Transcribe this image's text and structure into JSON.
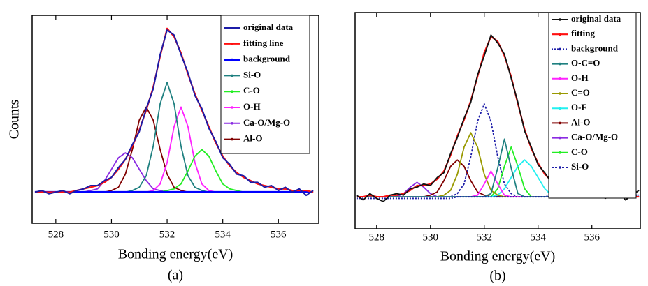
{
  "chart_data": [
    {
      "type": "line",
      "caption": "(a)",
      "x_label": "Bonding energy(eV)",
      "y_label": "Counts",
      "xlim": [
        527.15,
        537.45
      ],
      "ylim": [
        -19,
        108
      ],
      "xticks": [
        528,
        530,
        532,
        534,
        536
      ],
      "legend": "upper right",
      "x": [
        527.25,
        527.5,
        527.75,
        528,
        528.25,
        528.5,
        528.75,
        529,
        529.25,
        529.5,
        529.75,
        530,
        530.25,
        530.5,
        530.75,
        531,
        531.25,
        531.5,
        531.75,
        532,
        532.25,
        532.5,
        532.75,
        533,
        533.25,
        533.5,
        533.75,
        534,
        534.25,
        534.5,
        534.75,
        535,
        535.25,
        535.5,
        535.75,
        536,
        536.25,
        536.5,
        536.75,
        537,
        537.25
      ],
      "series": [
        {
          "name": "original data",
          "color": "#1c1ca8",
          "width": 2,
          "values": [
            0,
            1,
            -1,
            0,
            1,
            -1,
            1,
            2,
            4,
            4,
            7,
            9,
            15,
            20,
            29,
            37,
            51,
            63,
            84,
            99,
            96,
            84,
            73,
            59,
            51,
            39,
            31,
            21,
            17,
            11,
            10,
            6,
            6,
            3,
            4,
            1,
            3,
            0,
            2,
            -2,
            1
          ]
        },
        {
          "name": "fitting line",
          "color": "#ff1010",
          "width": 2.2,
          "values": [
            0,
            0,
            0,
            0,
            0,
            0,
            1,
            2,
            3,
            4,
            6,
            9,
            14,
            20,
            28,
            38,
            50,
            64,
            83,
            100,
            95,
            85,
            72,
            60,
            50,
            40,
            30,
            22,
            16,
            12,
            9,
            7,
            5,
            4,
            3,
            2,
            2,
            1,
            1,
            1,
            0
          ]
        },
        {
          "name": "background",
          "color": "#0000ff",
          "width": 3,
          "values": [
            0,
            0,
            0,
            0,
            0,
            0,
            0,
            0,
            0,
            0,
            0,
            0,
            0,
            0,
            0,
            0,
            0,
            0,
            0,
            0,
            0,
            0,
            0,
            0,
            0,
            0,
            0,
            0,
            0,
            0,
            0,
            0,
            0,
            0,
            0,
            0,
            0,
            0,
            0,
            0,
            0
          ]
        },
        {
          "name": "Si-O",
          "color": "#1f8080",
          "width": 1.8,
          "values": [
            0,
            0,
            0,
            0,
            0,
            0,
            0,
            0,
            0,
            0,
            0,
            0,
            0,
            0,
            1,
            3,
            10,
            28,
            54,
            67,
            54,
            28,
            10,
            3,
            1,
            0,
            0,
            0,
            0,
            0,
            0,
            0,
            0,
            0,
            0,
            0,
            0,
            0,
            0,
            0,
            0
          ]
        },
        {
          "name": "C-O",
          "color": "#22ee22",
          "width": 1.8,
          "values": [
            0,
            0,
            0,
            0,
            0,
            0,
            0,
            0,
            0,
            0,
            0,
            0,
            0,
            0,
            0,
            0,
            0,
            0,
            0,
            1,
            2,
            5,
            13,
            22,
            26,
            22,
            13,
            5,
            2,
            1,
            0,
            0,
            0,
            0,
            0,
            0,
            0,
            0,
            0,
            0,
            0
          ]
        },
        {
          "name": "O-H",
          "color": "#ff22ff",
          "width": 1.8,
          "values": [
            0,
            0,
            0,
            0,
            0,
            0,
            0,
            0,
            0,
            0,
            0,
            0,
            0,
            0,
            0,
            0,
            0,
            1,
            5,
            18,
            40,
            52,
            40,
            18,
            5,
            1,
            0,
            0,
            0,
            0,
            0,
            0,
            0,
            0,
            0,
            0,
            0,
            0,
            0,
            0,
            0
          ]
        },
        {
          "name": "Ca-O/Mg-O",
          "color": "#8a2be2",
          "width": 1.8,
          "values": [
            0,
            0,
            0,
            0,
            0,
            0,
            0,
            0,
            1,
            2,
            7,
            14,
            21,
            24,
            21,
            14,
            7,
            2,
            1,
            0,
            0,
            0,
            0,
            0,
            0,
            0,
            0,
            0,
            0,
            0,
            0,
            0,
            0,
            0,
            0,
            0,
            0,
            0,
            0,
            0,
            0
          ]
        },
        {
          "name": "Al-O",
          "color": "#800000",
          "width": 1.8,
          "values": [
            0,
            0,
            0,
            0,
            0,
            0,
            0,
            0,
            0,
            0,
            0,
            1,
            3,
            11,
            26,
            44,
            52,
            44,
            26,
            11,
            3,
            1,
            0,
            0,
            0,
            0,
            0,
            0,
            0,
            0,
            0,
            0,
            0,
            0,
            0,
            0,
            0,
            0,
            0,
            0,
            0
          ]
        }
      ]
    },
    {
      "type": "line",
      "caption": "(b)",
      "x_label": "Bonding energy(eV)",
      "xlim": [
        527.2,
        537.8
      ],
      "ylim": [
        -20,
        115
      ],
      "xticks": [
        528,
        530,
        532,
        534,
        536
      ],
      "legend": "upper right",
      "x": [
        527.25,
        527.5,
        527.75,
        528,
        528.25,
        528.5,
        528.75,
        529,
        529.25,
        529.5,
        529.75,
        530,
        530.25,
        530.5,
        530.75,
        531,
        531.25,
        531.5,
        531.75,
        532,
        532.25,
        532.5,
        532.75,
        533,
        533.25,
        533.5,
        533.75,
        534,
        534.25,
        534.5,
        534.75,
        535,
        535.25,
        535.5,
        535.75,
        536,
        536.25,
        536.5,
        536.75,
        537,
        537.25,
        537.5,
        537.75
      ],
      "series": [
        {
          "name": "original data",
          "color": "#111111",
          "width": 1.8,
          "values": [
            1,
            -2,
            2,
            -1,
            -3,
            1,
            2,
            1,
            5,
            6,
            8,
            7,
            12,
            15,
            27,
            37,
            49,
            59,
            76,
            88,
            101,
            96,
            89,
            74,
            59,
            41,
            31,
            20,
            15,
            9,
            8,
            5,
            5,
            2,
            3,
            0,
            2,
            -1,
            1,
            3,
            -2,
            1,
            4
          ]
        },
        {
          "name": "fitting",
          "color": "#ff1010",
          "width": 2.2,
          "values": [
            0,
            0,
            1,
            0,
            0,
            1,
            1,
            2,
            4,
            7,
            7,
            8,
            11,
            16,
            26,
            38,
            48,
            60,
            75,
            90,
            100,
            97,
            88,
            75,
            58,
            42,
            30,
            21,
            14,
            10,
            7,
            6,
            4,
            3,
            2,
            2,
            1,
            1,
            0,
            0,
            0,
            0,
            0
          ]
        },
        {
          "name": "background",
          "color": "#1c1ca8",
          "width": 2,
          "dash": "2 2",
          "values": [
            -1,
            -1,
            -1,
            -1,
            -1,
            -1,
            -1,
            -1,
            -1,
            -1,
            -1,
            -1,
            -1,
            -1,
            -1,
            0,
            0,
            0,
            0,
            0,
            0,
            0,
            0,
            0,
            0,
            0,
            0,
            0,
            0,
            1,
            1,
            1,
            1,
            1,
            1,
            1,
            1,
            1,
            1,
            1,
            1,
            1,
            1
          ]
        },
        {
          "name": "O-C=O",
          "color": "#1f8080",
          "width": 1.8,
          "values": [
            0,
            0,
            0,
            0,
            0,
            0,
            0,
            0,
            0,
            0,
            0,
            0,
            0,
            0,
            0,
            0,
            0,
            0,
            0,
            0,
            2,
            18,
            36,
            18,
            2,
            0,
            0,
            0,
            0,
            0,
            0,
            0,
            0,
            0,
            0,
            0,
            0,
            0,
            0,
            0,
            0,
            0,
            0
          ]
        },
        {
          "name": "O-H",
          "color": "#ff22ff",
          "width": 1.8,
          "values": [
            0,
            0,
            0,
            0,
            0,
            0,
            0,
            0,
            0,
            0,
            0,
            0,
            0,
            0,
            0,
            0,
            0,
            0,
            1,
            8,
            16,
            8,
            1,
            0,
            0,
            0,
            0,
            0,
            0,
            0,
            0,
            0,
            0,
            0,
            0,
            0,
            0,
            0,
            0,
            0,
            0,
            0,
            0
          ]
        },
        {
          "name": "C=O",
          "color": "#999900",
          "width": 1.8,
          "values": [
            0,
            0,
            0,
            0,
            0,
            0,
            0,
            0,
            0,
            0,
            0,
            0,
            0,
            1,
            4,
            14,
            31,
            40,
            31,
            14,
            4,
            1,
            0,
            0,
            0,
            0,
            0,
            0,
            0,
            0,
            0,
            0,
            0,
            0,
            0,
            0,
            0,
            0,
            0,
            0,
            0,
            0,
            0
          ]
        },
        {
          "name": "O-F",
          "color": "#22f0f0",
          "width": 1.8,
          "values": [
            0,
            0,
            0,
            0,
            0,
            0,
            0,
            0,
            0,
            0,
            0,
            0,
            0,
            0,
            0,
            0,
            0,
            0,
            0,
            0,
            0,
            1,
            5,
            12,
            19,
            23,
            19,
            12,
            5,
            1,
            0,
            0,
            0,
            0,
            0,
            0,
            0,
            0,
            0,
            0,
            0,
            0,
            0
          ]
        },
        {
          "name": "Al-O",
          "color": "#800000",
          "width": 1.8,
          "values": [
            0,
            0,
            0,
            0,
            0,
            0,
            0,
            0,
            0,
            0,
            0,
            1,
            3,
            10,
            19,
            23,
            19,
            10,
            3,
            1,
            0,
            0,
            0,
            0,
            0,
            0,
            0,
            0,
            0,
            0,
            0,
            0,
            0,
            0,
            0,
            0,
            0,
            0,
            0,
            0,
            0,
            0,
            0
          ]
        },
        {
          "name": "Ca-O/Mg-O",
          "color": "#8a2be2",
          "width": 1.8,
          "values": [
            0,
            0,
            0,
            0,
            0,
            0,
            0,
            2,
            6,
            9,
            6,
            2,
            0,
            0,
            0,
            0,
            0,
            0,
            0,
            0,
            0,
            0,
            0,
            0,
            0,
            0,
            0,
            0,
            0,
            0,
            0,
            0,
            0,
            0,
            0,
            0,
            0,
            0,
            0,
            0,
            0,
            0,
            0
          ]
        },
        {
          "name": "C-O",
          "color": "#22ee22",
          "width": 1.8,
          "values": [
            0,
            0,
            0,
            0,
            0,
            0,
            0,
            0,
            0,
            0,
            0,
            0,
            0,
            0,
            0,
            0,
            0,
            0,
            0,
            0,
            0,
            5,
            19,
            31,
            19,
            5,
            0,
            0,
            0,
            0,
            0,
            0,
            0,
            0,
            0,
            0,
            0,
            0,
            0,
            0,
            0,
            0,
            0
          ]
        },
        {
          "name": "Si-O",
          "color": "#1c1ca8",
          "width": 1.8,
          "dash": "3 2",
          "values": [
            0,
            0,
            0,
            0,
            0,
            0,
            0,
            0,
            0,
            0,
            0,
            0,
            0,
            0,
            0,
            2,
            8,
            25,
            47,
            58,
            47,
            25,
            8,
            2,
            0,
            0,
            0,
            0,
            0,
            0,
            0,
            0,
            0,
            0,
            0,
            0,
            0,
            0,
            0,
            0,
            0,
            0,
            0
          ]
        }
      ]
    }
  ]
}
